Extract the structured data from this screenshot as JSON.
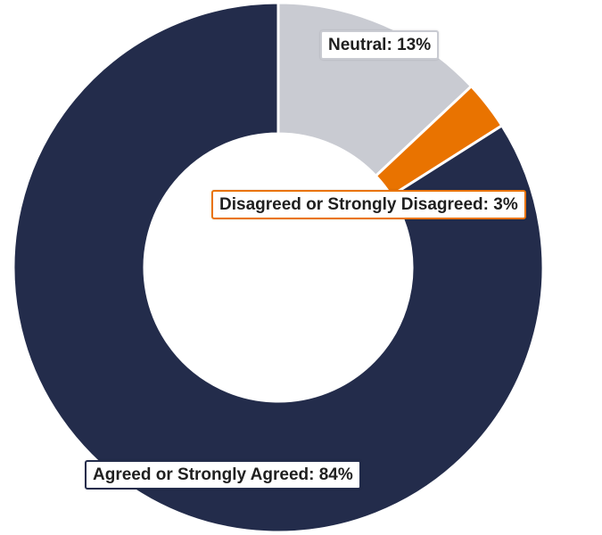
{
  "chart_data": {
    "type": "pie",
    "title": "",
    "donut": true,
    "slices": [
      {
        "label": "Agreed or Strongly Agreed",
        "value": 84,
        "color": "#232c4b"
      },
      {
        "label": "Neutral",
        "value": 13,
        "color": "#c9cbd2"
      },
      {
        "label": "Disagreed or Strongly Disagreed",
        "value": 3,
        "color": "#e97300"
      }
    ],
    "labels": {
      "agreed": "Agreed or Strongly Agreed: 84%",
      "neutral": "Neutral: 13%",
      "disagreed": "Disagreed or Strongly Disagreed: 3%"
    },
    "label_borders": {
      "agreed": "#232c4b",
      "neutral": "#c9cbd2",
      "disagreed": "#e97300"
    }
  }
}
